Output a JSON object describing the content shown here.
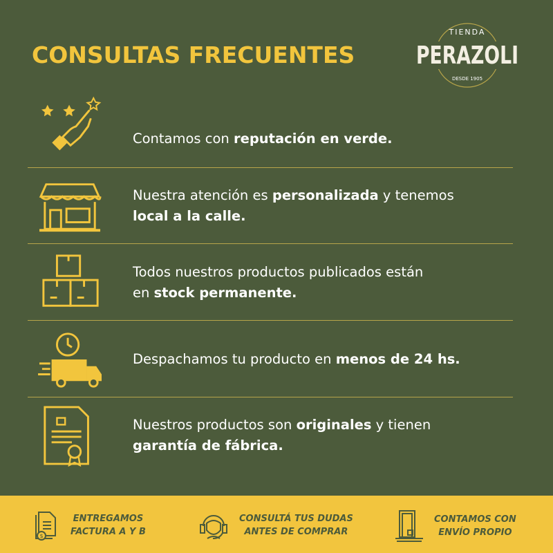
{
  "title": "CONSULTAS FRECUENTES",
  "logo": {
    "top": "TIENDA",
    "name": "PERAZOLI",
    "bottom": "DESDE 1905"
  },
  "colors": {
    "background": "#4c5b3b",
    "accent": "#f2c53d",
    "text": "#ffffff"
  },
  "items": [
    {
      "icon": "stars-hand-icon",
      "parts": [
        {
          "t": "Contamos con ",
          "b": false
        },
        {
          "t": "reputación en verde.",
          "b": true
        }
      ]
    },
    {
      "icon": "storefront-icon",
      "parts": [
        {
          "t": "Nuestra atención es ",
          "b": false
        },
        {
          "t": "personalizada",
          "b": true
        },
        {
          "t": " y tenemos",
          "b": false
        },
        {
          "t": "\n",
          "b": false
        },
        {
          "t": "local a la calle.",
          "b": true
        }
      ]
    },
    {
      "icon": "boxes-icon",
      "parts": [
        {
          "t": "Todos nuestros productos publicados están",
          "b": false
        },
        {
          "t": "\n",
          "b": false
        },
        {
          "t": "en ",
          "b": false
        },
        {
          "t": "stock permanente.",
          "b": true
        }
      ]
    },
    {
      "icon": "fast-delivery-truck-icon",
      "parts": [
        {
          "t": "Despachamos tu producto en ",
          "b": false
        },
        {
          "t": "menos de 24 hs.",
          "b": true
        }
      ]
    },
    {
      "icon": "certificate-icon",
      "parts": [
        {
          "t": "Nuestros productos son ",
          "b": false
        },
        {
          "t": "originales",
          "b": true
        },
        {
          "t": " y tienen",
          "b": false
        },
        {
          "t": "\n",
          "b": false
        },
        {
          "t": "garantía de fábrica.",
          "b": true
        }
      ]
    }
  ],
  "features": [
    {
      "icon": "invoice-icon",
      "line1": "ENTREGAMOS",
      "line2": "FACTURA A Y B"
    },
    {
      "icon": "headset-support-icon",
      "line1": "CONSULTÁ TUS DUDAS",
      "line2": "ANTES DE COMPRAR"
    },
    {
      "icon": "door-delivery-icon",
      "line1": "CONTAMOS CON",
      "line2": "ENVÍO PROPIO"
    }
  ]
}
